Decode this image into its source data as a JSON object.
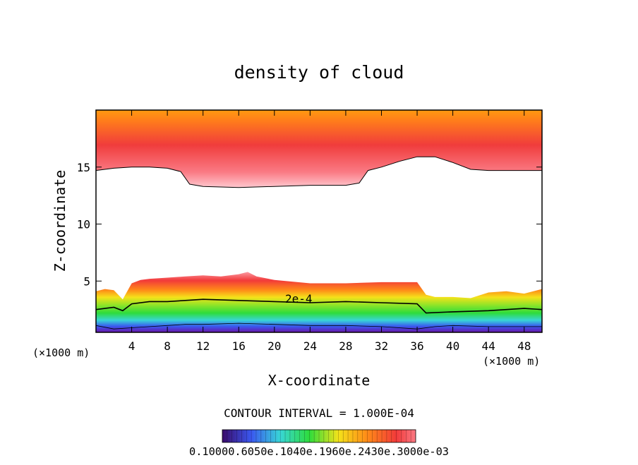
{
  "chart_data": {
    "type": "heatmap",
    "title": "density of cloud",
    "xlabel": "X-coordinate",
    "ylabel": "Z-coordinate",
    "x_unit_label": "(×1000 m)",
    "y_unit_label": "(×1000 m)",
    "xlim": [
      0,
      50
    ],
    "ylim": [
      0.5,
      20
    ],
    "x_ticks": [
      4,
      8,
      12,
      16,
      20,
      24,
      28,
      32,
      36,
      40,
      44,
      48
    ],
    "y_ticks": [
      5,
      10,
      15
    ],
    "contour_interval_text": "CONTOUR INTERVAL = 1.000E-04",
    "contour_label": "2e-4",
    "colorbar_labels": "0.10000.6050e.1040e.1960e.2430e.3000e-03",
    "colors": {
      "upper_layer_core": "#f03c3c",
      "upper_layer_top": "#ff9a10",
      "upper_layer_edge": "#ffc0c8",
      "lower_red": "#f23a3a",
      "lower_orange": "#ff8a18",
      "lower_yellow": "#f4e21a",
      "lower_green": "#2edc3c",
      "lower_cyan": "#38d6d6",
      "lower_blue": "#3a58f0",
      "lower_violet": "#6a14a8"
    },
    "upper_layer_base": {
      "x": [
        0,
        2,
        4,
        6,
        8,
        9.5,
        10.5,
        12,
        16,
        20,
        24,
        28,
        29.5,
        30.5,
        32,
        34,
        36,
        38,
        40,
        42,
        44,
        46,
        48,
        50
      ],
      "z": [
        14.7,
        14.9,
        15.0,
        15.0,
        14.9,
        14.6,
        13.5,
        13.3,
        13.2,
        13.3,
        13.4,
        13.4,
        13.6,
        14.7,
        15.0,
        15.5,
        15.9,
        15.9,
        15.4,
        14.8,
        14.7,
        14.7,
        14.7,
        14.7
      ]
    },
    "lower_layer_top": {
      "x": [
        0,
        1,
        2,
        3,
        4,
        5,
        6,
        8,
        10,
        12,
        14,
        16,
        17,
        18,
        20,
        24,
        28,
        32,
        34,
        36,
        37,
        38,
        40,
        42,
        44,
        46,
        48,
        50
      ],
      "z": [
        4.1,
        4.3,
        4.2,
        3.4,
        4.8,
        5.1,
        5.2,
        5.3,
        5.4,
        5.5,
        5.4,
        5.6,
        5.8,
        5.4,
        5.1,
        4.8,
        4.8,
        4.9,
        4.9,
        4.9,
        3.8,
        3.6,
        3.6,
        3.5,
        4.0,
        4.1,
        3.9,
        4.3
      ]
    },
    "contour_2e4": {
      "x": [
        0,
        2,
        3,
        4,
        6,
        8,
        10,
        12,
        16,
        20,
        24,
        28,
        32,
        36,
        37,
        40,
        44,
        48,
        50
      ],
      "z": [
        2.5,
        2.7,
        2.4,
        3.0,
        3.2,
        3.2,
        3.3,
        3.4,
        3.3,
        3.2,
        3.1,
        3.2,
        3.1,
        3.0,
        2.2,
        2.3,
        2.4,
        2.6,
        2.5
      ]
    },
    "lower_layer_base": {
      "x": [
        0,
        2,
        4,
        6,
        8,
        10,
        12,
        16,
        20,
        24,
        28,
        32,
        36,
        38,
        40,
        44,
        48,
        50
      ],
      "z": [
        1.1,
        0.8,
        0.9,
        1.0,
        1.1,
        1.2,
        1.2,
        1.3,
        1.2,
        1.1,
        1.1,
        1.0,
        0.8,
        1.0,
        1.1,
        1.0,
        1.0,
        1.0
      ]
    }
  }
}
